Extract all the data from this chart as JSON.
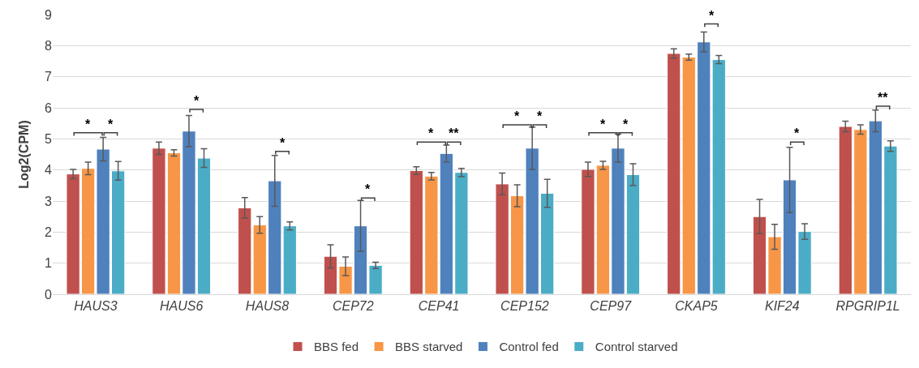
{
  "chart_data": {
    "type": "bar",
    "ylabel": "Log2(CPM)",
    "categories": [
      "HAUS3",
      "HAUS6",
      "HAUS8",
      "CEP72",
      "CEP41",
      "CEP152",
      "CEP97",
      "CKAP5",
      "KIF24",
      "RPGRIP1L"
    ],
    "series": [
      {
        "name": "BBS fed",
        "color": "#c0504d",
        "values": [
          3.87,
          4.7,
          2.78,
          1.22,
          3.98,
          3.55,
          4.02,
          7.75,
          2.5,
          5.4
        ],
        "errors": [
          0.15,
          0.2,
          0.33,
          0.37,
          0.12,
          0.35,
          0.23,
          0.15,
          0.55,
          0.17
        ]
      },
      {
        "name": "BBS starved",
        "color": "#f79646",
        "values": [
          4.05,
          4.55,
          2.23,
          0.9,
          3.8,
          3.17,
          4.15,
          7.63,
          1.85,
          5.3
        ],
        "errors": [
          0.2,
          0.1,
          0.27,
          0.3,
          0.12,
          0.35,
          0.13,
          0.1,
          0.4,
          0.15
        ]
      },
      {
        "name": "Control fed",
        "color": "#4f81bd",
        "values": [
          4.67,
          5.25,
          3.65,
          2.2,
          4.53,
          4.7,
          4.7,
          8.12,
          3.68,
          5.58
        ],
        "errors": [
          0.38,
          0.5,
          0.82,
          0.82,
          0.27,
          0.68,
          0.45,
          0.32,
          1.05,
          0.35
        ]
      },
      {
        "name": "Control starved",
        "color": "#4bacc6",
        "values": [
          3.97,
          4.38,
          2.2,
          0.93,
          3.92,
          3.25,
          3.85,
          7.55,
          2.02,
          4.77
        ],
        "errors": [
          0.3,
          0.3,
          0.13,
          0.1,
          0.13,
          0.45,
          0.35,
          0.13,
          0.25,
          0.17
        ]
      }
    ],
    "ylim": [
      0,
      9
    ],
    "yticks": [
      0,
      1,
      2,
      3,
      4,
      5,
      6,
      7,
      8,
      9
    ],
    "grid": "y",
    "legend": "bottom",
    "annotations": [
      "*",
      "*",
      "*",
      "*",
      "*",
      "*",
      "**",
      "*",
      "*",
      "*",
      "*",
      "*",
      "*",
      "**"
    ]
  }
}
